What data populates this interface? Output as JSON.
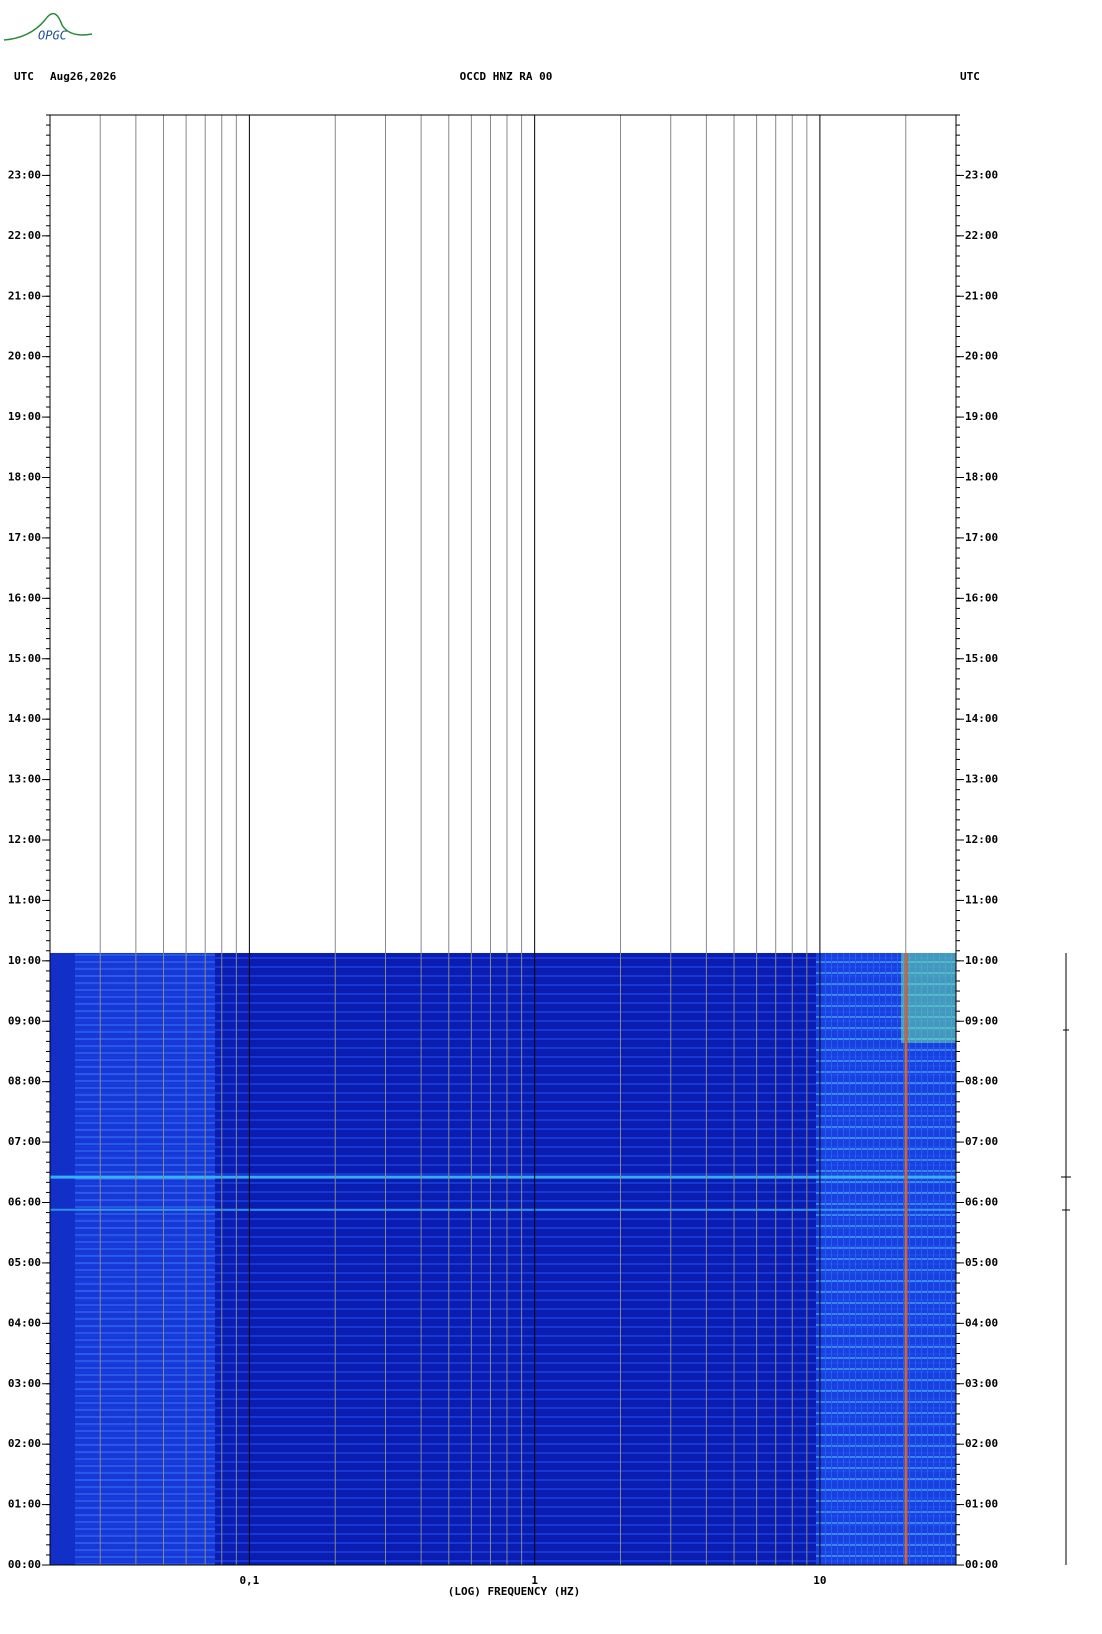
{
  "chart_data": {
    "type": "spectrogram",
    "logo": "OPGC",
    "left_header": "UTC",
    "date": "Aug26,2026",
    "title": "OCCD HNZ RA 00",
    "right_header": "UTC",
    "xlabel": "(LOG) FREQUENCY (HZ)",
    "xscale": "log",
    "xlim": [
      0.02,
      30
    ],
    "xticks": [
      {
        "value": 0.1,
        "label": "0,1"
      },
      {
        "value": 1,
        "label": "1"
      },
      {
        "value": 10,
        "label": "10"
      }
    ],
    "xminor": [
      0.03,
      0.04,
      0.05,
      0.06,
      0.07,
      0.08,
      0.09,
      0.2,
      0.3,
      0.4,
      0.5,
      0.6,
      0.7,
      0.8,
      0.9,
      2,
      3,
      4,
      5,
      6,
      7,
      8,
      9,
      20
    ],
    "ylim": [
      0,
      24
    ],
    "yticks": [
      {
        "value": 0,
        "label": "00:00"
      },
      {
        "value": 1,
        "label": "01:00"
      },
      {
        "value": 2,
        "label": "02:00"
      },
      {
        "value": 3,
        "label": "03:00"
      },
      {
        "value": 4,
        "label": "04:00"
      },
      {
        "value": 5,
        "label": "05:00"
      },
      {
        "value": 6,
        "label": "06:00"
      },
      {
        "value": 7,
        "label": "07:00"
      },
      {
        "value": 8,
        "label": "08:00"
      },
      {
        "value": 9,
        "label": "09:00"
      },
      {
        "value": 10,
        "label": "10:00"
      },
      {
        "value": 11,
        "label": "11:00"
      },
      {
        "value": 12,
        "label": "12:00"
      },
      {
        "value": 13,
        "label": "13:00"
      },
      {
        "value": 14,
        "label": "14:00"
      },
      {
        "value": 15,
        "label": "15:00"
      },
      {
        "value": 16,
        "label": "16:00"
      },
      {
        "value": 17,
        "label": "17:00"
      },
      {
        "value": 18,
        "label": "18:00"
      },
      {
        "value": 19,
        "label": "19:00"
      },
      {
        "value": 20,
        "label": "20:00"
      },
      {
        "value": 21,
        "label": "21:00"
      },
      {
        "value": 22,
        "label": "22:00"
      },
      {
        "value": 23,
        "label": "23:00"
      }
    ],
    "data_end": 10.13
  }
}
